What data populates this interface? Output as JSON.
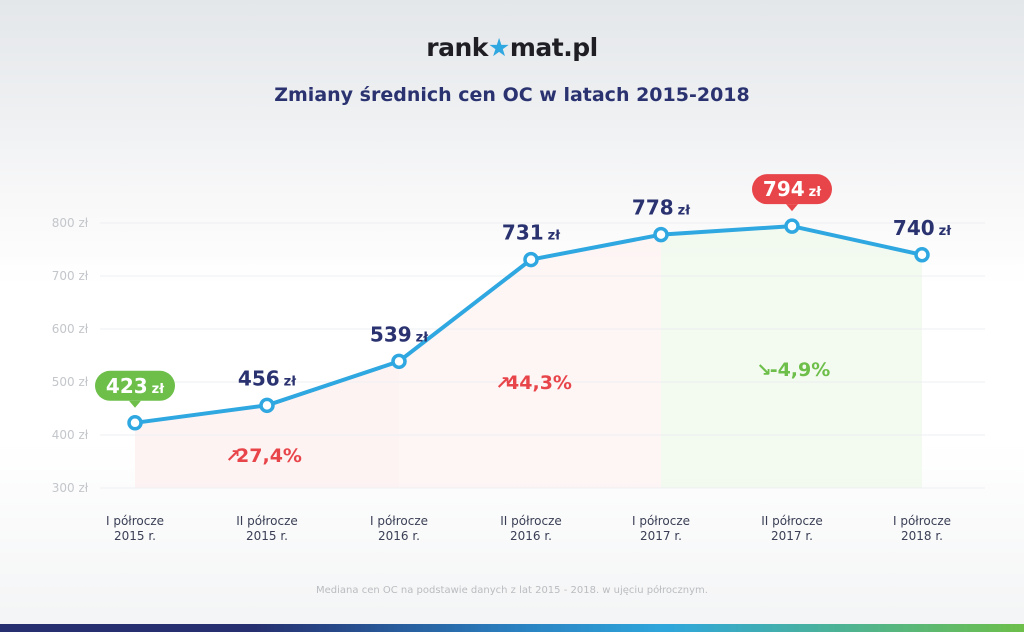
{
  "logo": {
    "text_before": "rank",
    "text_star": "★",
    "text_after": "mat.pl"
  },
  "title": "Zmiany średnich cen OC w latach 2015-2018",
  "footnote": "Mediana cen OC na podstawie danych z lat 2015 - 2018. w ujęciu półrocznym.",
  "colors": {
    "line": "#2fa7e0",
    "increase": "#e8454a",
    "decrease": "#6dbf4a",
    "value_label": "#2a3270",
    "min_badge": "#6dbf4a",
    "max_badge": "#e8454a"
  },
  "chart_data": {
    "type": "line",
    "title": "Zmiany średnich cen OC w latach 2015-2018",
    "categories": [
      [
        "I półrocze",
        "2015 r."
      ],
      [
        "II półrocze",
        "2015 r."
      ],
      [
        "I półrocze",
        "2016 r."
      ],
      [
        "II półrocze",
        "2016 r."
      ],
      [
        "I półrocze",
        "2017 r."
      ],
      [
        "II półrocze",
        "2017 r."
      ],
      [
        "I półrocze",
        "2018 r."
      ]
    ],
    "values": [
      423,
      456,
      539,
      731,
      778,
      794,
      740
    ],
    "value_labels": [
      "423 zł",
      "456 zł",
      "539 zł",
      "731 zł",
      "778 zł",
      "794 zł",
      "740 zł"
    ],
    "highlight": {
      "min_index": 0,
      "max_index": 5
    },
    "yticks": [
      300,
      400,
      500,
      600,
      700,
      800
    ],
    "ytick_labels": [
      "300 zł",
      "400 zł",
      "500 zł",
      "600 zł",
      "700 zł",
      "800 zł"
    ],
    "ylim": [
      300,
      800
    ],
    "grid": true,
    "annotations": [
      {
        "text": "27,4%",
        "direction": "up",
        "from_index": 0,
        "to_index": 2
      },
      {
        "text": "44,3%",
        "direction": "up",
        "from_index": 2,
        "to_index": 4
      },
      {
        "text": "-4,9%",
        "direction": "down",
        "from_index": 4,
        "to_index": 6
      }
    ]
  }
}
